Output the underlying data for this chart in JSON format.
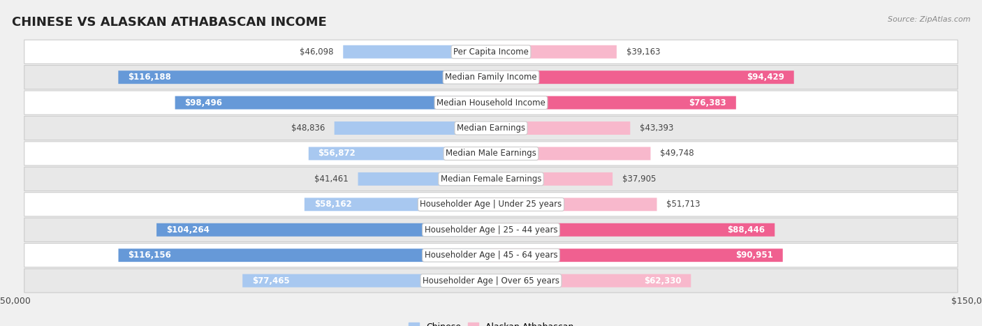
{
  "title": "CHINESE VS ALASKAN ATHABASCAN INCOME",
  "source": "Source: ZipAtlas.com",
  "categories": [
    "Per Capita Income",
    "Median Family Income",
    "Median Household Income",
    "Median Earnings",
    "Median Male Earnings",
    "Median Female Earnings",
    "Householder Age | Under 25 years",
    "Householder Age | 25 - 44 years",
    "Householder Age | 45 - 64 years",
    "Householder Age | Over 65 years"
  ],
  "chinese_values": [
    46098,
    116188,
    98496,
    48836,
    56872,
    41461,
    58162,
    104264,
    116156,
    77465
  ],
  "athabascan_values": [
    39163,
    94429,
    76383,
    43393,
    49748,
    37905,
    51713,
    88446,
    90951,
    62330
  ],
  "chinese_color_light": "#a8c8f0",
  "chinese_color_dark": "#6699d8",
  "athabascan_color_light": "#f8b8cc",
  "athabascan_color_dark": "#f06090",
  "chinese_dark_threshold": 80000,
  "athabascan_dark_threshold": 70000,
  "bar_height": 0.52,
  "xlim": 150000,
  "bg_color": "#f0f0f0",
  "row_bg_white": "#ffffff",
  "row_bg_gray": "#e8e8e8",
  "title_fontsize": 13,
  "label_fontsize": 8.5,
  "value_fontsize": 8.5,
  "axis_label_fontsize": 9,
  "legend_fontsize": 9,
  "inside_label_threshold": 55000
}
